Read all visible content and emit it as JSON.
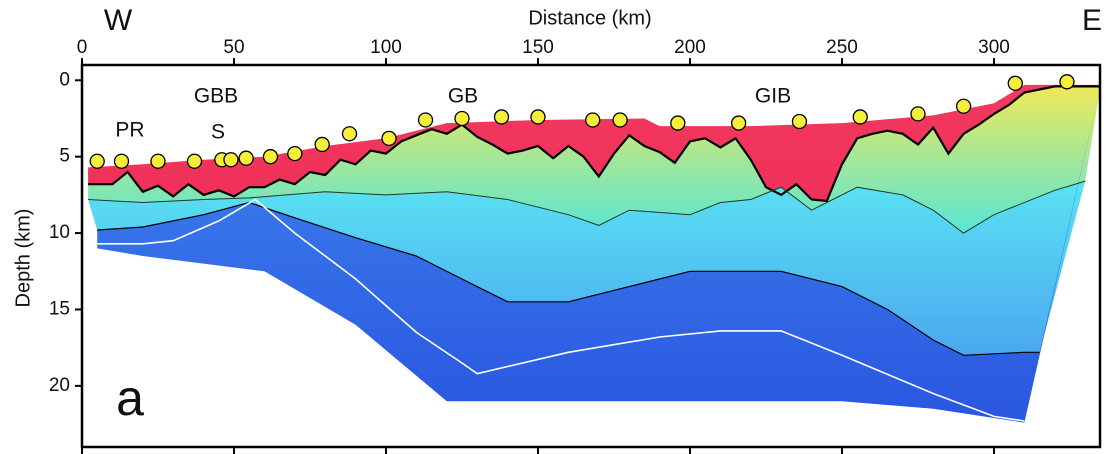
{
  "chart_data": {
    "type": "section",
    "x_label": "Distance (km)",
    "y_label": "Depth (km)",
    "left_label": "W",
    "right_label": "E",
    "panel_label": "a",
    "annotations": [
      "PR",
      "GBB",
      "S",
      "GB",
      "GIB"
    ],
    "xlim": [
      0,
      335
    ],
    "ylim": [
      -1,
      24
    ],
    "xticks": [
      0,
      50,
      100,
      150,
      200,
      250,
      300
    ],
    "yticks": [
      0,
      5,
      10,
      15,
      20
    ],
    "boundaries": [
      {
        "color": "none",
        "width": 0,
        "x": [
          2,
          20,
          40,
          60,
          80,
          100,
          120,
          150,
          185,
          190,
          220,
          250,
          280,
          300,
          310,
          335
        ],
        "y": [
          5.7,
          5.5,
          5.2,
          5.0,
          4.3,
          3.8,
          2.8,
          2.6,
          2.5,
          3.0,
          3.0,
          2.8,
          2.3,
          1.5,
          0.3,
          0.3
        ]
      },
      {
        "color": "#000000",
        "width": 2.2,
        "x": [
          2,
          10,
          15,
          20,
          25,
          30,
          35,
          40,
          45,
          50,
          55,
          60,
          65,
          70,
          75,
          80,
          85,
          90,
          95,
          100,
          105,
          110,
          115,
          120,
          125,
          130,
          135,
          140,
          145,
          150,
          155,
          160,
          165,
          170,
          175,
          180,
          185,
          190,
          195,
          200,
          205,
          210,
          215,
          220,
          225,
          230,
          235,
          240,
          245,
          250,
          255,
          260,
          265,
          270,
          275,
          280,
          285,
          290,
          295,
          300,
          305,
          310,
          320,
          335
        ],
        "y": [
          6.8,
          6.8,
          6.0,
          7.3,
          6.9,
          7.6,
          6.8,
          7.5,
          7.2,
          7.6,
          7.0,
          7.0,
          6.5,
          6.8,
          6.0,
          6.2,
          5.2,
          5.5,
          4.6,
          4.8,
          4.0,
          3.6,
          3.2,
          3.5,
          2.9,
          3.7,
          4.2,
          4.8,
          4.6,
          4.3,
          5.1,
          4.3,
          5.0,
          6.3,
          4.8,
          3.6,
          4.3,
          4.7,
          5.4,
          4.0,
          3.8,
          4.4,
          3.8,
          5.2,
          7.0,
          7.5,
          6.8,
          7.8,
          7.9,
          5.5,
          3.8,
          3.5,
          3.3,
          3.5,
          4.2,
          3.1,
          4.8,
          3.5,
          2.9,
          2.2,
          1.6,
          0.8,
          0.4,
          0.4
        ]
      },
      {
        "color": "#1e3a1e",
        "width": 1,
        "x": [
          2,
          20,
          40,
          55,
          80,
          100,
          120,
          140,
          160,
          170,
          180,
          200,
          210,
          220,
          230,
          240,
          255,
          270,
          280,
          290,
          300,
          320,
          330
        ],
        "y": [
          7.8,
          8.0,
          7.8,
          7.7,
          7.3,
          7.5,
          7.3,
          7.8,
          8.8,
          9.5,
          8.5,
          8.8,
          8.0,
          7.8,
          7.0,
          8.5,
          7.0,
          7.5,
          8.5,
          10.0,
          8.8,
          7.2,
          6.6
        ]
      },
      {
        "color": "#000000",
        "width": 1.2,
        "x": [
          5,
          20,
          40,
          55,
          70,
          90,
          110,
          130,
          140,
          160,
          180,
          200,
          230,
          250,
          265,
          280,
          290,
          310,
          315
        ],
        "y": [
          9.8,
          9.6,
          8.8,
          8.0,
          9.0,
          10.3,
          11.5,
          13.5,
          14.5,
          14.5,
          13.5,
          12.5,
          12.5,
          13.5,
          15.0,
          17.0,
          18.0,
          17.8,
          17.8
        ]
      },
      {
        "color": "none",
        "width": 0,
        "x": [
          5,
          20,
          60,
          90,
          120,
          250,
          280,
          310,
          335
        ],
        "y": [
          11.0,
          11.5,
          12.5,
          16.0,
          21.0,
          21.0,
          21.5,
          22.4,
          0.4
        ]
      }
    ],
    "fill_colors": [
      [
        "#f23a5e",
        "#f0305a"
      ],
      [
        "#eee85a",
        "#58e6d6"
      ],
      [
        "#5ae2f2",
        "#4aa8f0"
      ],
      [
        "#3e86ee",
        "#2a56e0"
      ]
    ],
    "moho": {
      "color": "#ffffff",
      "x": [
        5,
        20,
        30,
        45,
        57,
        70,
        90,
        110,
        125,
        130,
        160,
        190,
        210,
        230,
        250,
        280,
        300,
        310
      ],
      "y": [
        10.7,
        10.7,
        10.5,
        9.2,
        7.8,
        10.0,
        13.0,
        16.5,
        18.5,
        19.2,
        17.8,
        16.8,
        16.4,
        16.4,
        18.0,
        20.5,
        22.0,
        22.3
      ]
    },
    "stations": {
      "color": "#f6ef3a",
      "x": [
        5,
        13,
        25,
        37,
        46,
        49,
        54,
        62,
        70,
        79,
        88,
        101,
        113,
        125,
        138,
        150,
        168,
        177,
        196,
        216,
        236,
        256,
        275,
        290,
        307,
        324
      ],
      "y": [
        5.3,
        5.3,
        5.3,
        5.3,
        5.2,
        5.2,
        5.1,
        5.0,
        4.8,
        4.2,
        3.5,
        3.8,
        2.6,
        2.5,
        2.4,
        2.4,
        2.6,
        2.6,
        2.8,
        2.8,
        2.7,
        2.4,
        2.2,
        1.7,
        0.2,
        0.1
      ]
    }
  }
}
